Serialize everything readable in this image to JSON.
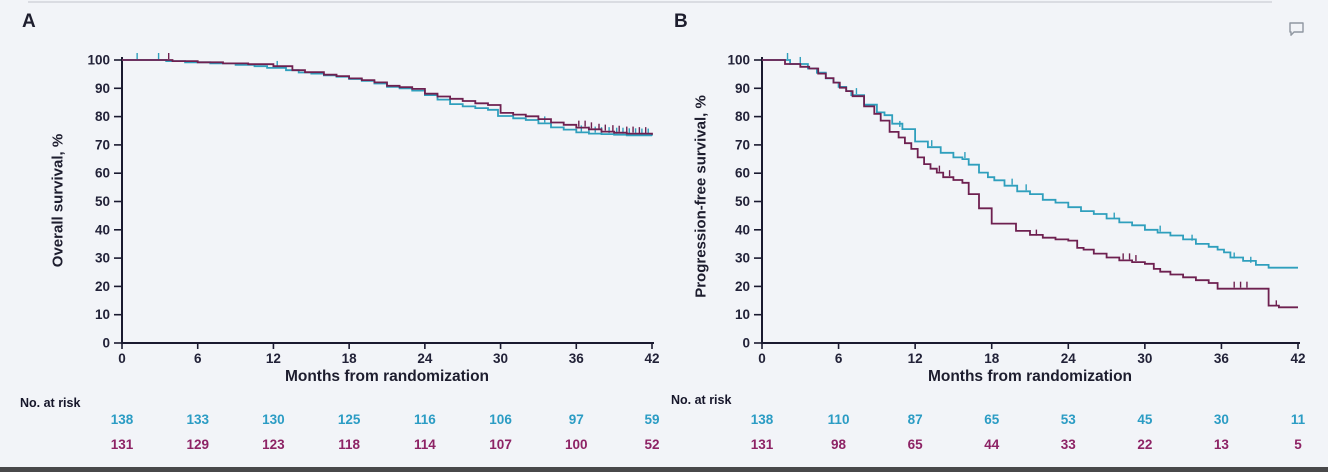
{
  "figure": {
    "background_color": "#f2f4f8",
    "axis_color": "#1a1a30",
    "tick_text_color": "#222238",
    "annotation_icon": "comment-bubble"
  },
  "chart_data": [
    {
      "type": "line",
      "style": "kaplan-meier-step",
      "panel_label": "A",
      "title": "",
      "xlabel": "Months from randomization",
      "ylabel": "Overall survival, %",
      "xlim": [
        0,
        42
      ],
      "ylim": [
        0,
        100
      ],
      "x_ticks": [
        0,
        6,
        12,
        18,
        24,
        30,
        36,
        42
      ],
      "y_ticks": [
        0,
        10,
        20,
        30,
        40,
        50,
        60,
        70,
        80,
        90,
        100
      ],
      "grid": false,
      "legend": "none",
      "series": [
        {
          "name": "teal-arm",
          "color": "#2f9fbd",
          "points": [
            [
              0,
              100
            ],
            [
              3.5,
              99.6
            ],
            [
              5,
              99.2
            ],
            [
              7,
              98.8
            ],
            [
              9,
              98.3
            ],
            [
              10.5,
              97.8
            ],
            [
              11.5,
              97.2
            ],
            [
              13,
              96.4
            ],
            [
              14,
              95.6
            ],
            [
              15,
              95.2
            ],
            [
              16,
              94.6
            ],
            [
              17,
              94.1
            ],
            [
              18,
              93.3
            ],
            [
              19,
              92.6
            ],
            [
              20,
              91.7
            ],
            [
              21,
              90.5
            ],
            [
              22,
              90
            ],
            [
              23,
              89.2
            ],
            [
              24,
              87.6
            ],
            [
              25,
              86
            ],
            [
              26,
              84.4
            ],
            [
              27,
              83.6
            ],
            [
              28,
              83
            ],
            [
              29,
              82.4
            ],
            [
              29.8,
              80.2
            ],
            [
              31,
              79.4
            ],
            [
              32,
              78.8
            ],
            [
              33,
              77.6
            ],
            [
              34,
              76.2
            ],
            [
              35,
              75.4
            ],
            [
              36,
              74.4
            ],
            [
              37,
              74
            ],
            [
              38,
              73.8
            ],
            [
              39,
              73.6
            ],
            [
              40,
              73.4
            ],
            [
              42,
              73.3
            ]
          ],
          "censor_marks": [
            [
              1.2,
              100
            ],
            [
              2.9,
              100
            ],
            [
              12.3,
              97.2
            ],
            [
              33.5,
              77.6
            ],
            [
              36.4,
              74.4
            ],
            [
              37,
              74
            ],
            [
              37.5,
              74
            ],
            [
              38,
              73.8
            ],
            [
              38.6,
              73.8
            ],
            [
              39.2,
              73.6
            ],
            [
              39.7,
              73.6
            ],
            [
              40.2,
              73.4
            ],
            [
              40.7,
              73.4
            ],
            [
              41.2,
              73.3
            ],
            [
              41.7,
              73.3
            ]
          ]
        },
        {
          "name": "maroon-arm",
          "color": "#6e2050",
          "points": [
            [
              0,
              100
            ],
            [
              4,
              99.6
            ],
            [
              6,
              99.2
            ],
            [
              8,
              98.8
            ],
            [
              10,
              98.5
            ],
            [
              12,
              97.8
            ],
            [
              13.5,
              96.4
            ],
            [
              14.5,
              95.7
            ],
            [
              16,
              94.8
            ],
            [
              17,
              94.3
            ],
            [
              18,
              93.5
            ],
            [
              19,
              92.9
            ],
            [
              20,
              92.1
            ],
            [
              21,
              90.9
            ],
            [
              22,
              90.4
            ],
            [
              23,
              89.8
            ],
            [
              24,
              88.1
            ],
            [
              25,
              87.1
            ],
            [
              26,
              86.3
            ],
            [
              27,
              85.5
            ],
            [
              28,
              84.7
            ],
            [
              29,
              84.1
            ],
            [
              30,
              81.3
            ],
            [
              31,
              80.7
            ],
            [
              32,
              80.1
            ],
            [
              33,
              79.1
            ],
            [
              34,
              77.9
            ],
            [
              35,
              77.1
            ],
            [
              36,
              76.1
            ],
            [
              37,
              75.5
            ],
            [
              38,
              74.7
            ],
            [
              39,
              74.3
            ],
            [
              40,
              74
            ],
            [
              42,
              73.6
            ]
          ],
          "censor_marks": [
            [
              3.7,
              100
            ],
            [
              36.2,
              76.1
            ],
            [
              36.7,
              76.1
            ],
            [
              37.2,
              75.5
            ],
            [
              37.8,
              75
            ],
            [
              38.3,
              74.7
            ],
            [
              38.9,
              74.5
            ],
            [
              39.4,
              74.3
            ],
            [
              40,
              74
            ],
            [
              40.5,
              74
            ],
            [
              41,
              73.8
            ],
            [
              41.5,
              73.8
            ]
          ]
        }
      ],
      "at_risk_table": {
        "title": "No. at risk",
        "columns": [
          0,
          6,
          12,
          18,
          24,
          30,
          36,
          42
        ],
        "rows": [
          {
            "name": "teal-arm",
            "color": "#2b9cc4",
            "values": [
              138,
              133,
              130,
              125,
              116,
              106,
              97,
              59
            ]
          },
          {
            "name": "maroon-arm",
            "color": "#8d2365",
            "values": [
              131,
              129,
              123,
              118,
              114,
              107,
              100,
              52
            ]
          }
        ]
      }
    },
    {
      "type": "line",
      "style": "kaplan-meier-step",
      "panel_label": "B",
      "title": "",
      "xlabel": "Months from randomization",
      "ylabel": "Progression-free survival, %",
      "xlim": [
        0,
        42
      ],
      "ylim": [
        0,
        100
      ],
      "x_ticks": [
        0,
        6,
        12,
        18,
        24,
        30,
        36,
        42
      ],
      "y_ticks": [
        0,
        10,
        20,
        30,
        40,
        50,
        60,
        70,
        80,
        90,
        100
      ],
      "grid": false,
      "legend": "none",
      "series": [
        {
          "name": "teal-arm",
          "color": "#2f9fbd",
          "points": [
            [
              0,
              100
            ],
            [
              2.2,
              98.6
            ],
            [
              3.6,
              97
            ],
            [
              4.3,
              95.5
            ],
            [
              5,
              93.5
            ],
            [
              5.6,
              92
            ],
            [
              6,
              90.5
            ],
            [
              6.6,
              89
            ],
            [
              7,
              87.6
            ],
            [
              8,
              84.2
            ],
            [
              9,
              81.5
            ],
            [
              9.6,
              80.5
            ],
            [
              10.2,
              77.5
            ],
            [
              11,
              75.6
            ],
            [
              12,
              71.2
            ],
            [
              13,
              69.2
            ],
            [
              14,
              67.2
            ],
            [
              15,
              65.6
            ],
            [
              15.7,
              65
            ],
            [
              16.2,
              63
            ],
            [
              17,
              60.2
            ],
            [
              17.7,
              58.6
            ],
            [
              18.2,
              57.5
            ],
            [
              19,
              55.6
            ],
            [
              20,
              53.6
            ],
            [
              21,
              52.6
            ],
            [
              22,
              50.6
            ],
            [
              23,
              49.6
            ],
            [
              24,
              48
            ],
            [
              25,
              46.6
            ],
            [
              26,
              45.6
            ],
            [
              27,
              44
            ],
            [
              28,
              42.6
            ],
            [
              29,
              41.6
            ],
            [
              30,
              40
            ],
            [
              31,
              39
            ],
            [
              32,
              38
            ],
            [
              33,
              36.6
            ],
            [
              34,
              35
            ],
            [
              35,
              34
            ],
            [
              35.7,
              33
            ],
            [
              36.2,
              32
            ],
            [
              36.7,
              30.2
            ],
            [
              37.7,
              29
            ],
            [
              38.7,
              27.6
            ],
            [
              39.7,
              26.6
            ],
            [
              42,
              26.6
            ]
          ],
          "censor_marks": [
            [
              2,
              100
            ],
            [
              3,
              98.6
            ],
            [
              7.4,
              87.6
            ],
            [
              10.8,
              76
            ],
            [
              13.3,
              69.2
            ],
            [
              15.9,
              65
            ],
            [
              19.6,
              55.6
            ],
            [
              20.7,
              53.6
            ],
            [
              27.6,
              43.6
            ],
            [
              31.2,
              39
            ],
            [
              33.7,
              35.8
            ],
            [
              37,
              29.5
            ],
            [
              38.3,
              28
            ]
          ]
        },
        {
          "name": "maroon-arm",
          "color": "#6e2050",
          "points": [
            [
              0,
              100
            ],
            [
              1.8,
              98.6
            ],
            [
              3,
              97.6
            ],
            [
              3.7,
              97
            ],
            [
              4.4,
              95.2
            ],
            [
              5,
              93.6
            ],
            [
              5.6,
              92
            ],
            [
              6.1,
              90.2
            ],
            [
              6.6,
              89
            ],
            [
              7.1,
              87.2
            ],
            [
              8,
              83.6
            ],
            [
              8.8,
              81
            ],
            [
              9.3,
              78.6
            ],
            [
              10,
              74.6
            ],
            [
              10.7,
              72.6
            ],
            [
              11.2,
              70.6
            ],
            [
              11.7,
              68.6
            ],
            [
              12.2,
              65.6
            ],
            [
              12.7,
              63.2
            ],
            [
              13.2,
              61.6
            ],
            [
              13.7,
              60.2
            ],
            [
              14.2,
              58.6
            ],
            [
              15,
              57.6
            ],
            [
              15.7,
              56.6
            ],
            [
              16.2,
              52.6
            ],
            [
              17,
              47.6
            ],
            [
              18,
              42.2
            ],
            [
              19.9,
              39.6
            ],
            [
              21,
              38.2
            ],
            [
              22,
              37.2
            ],
            [
              23,
              36.6
            ],
            [
              24,
              36.2
            ],
            [
              24.7,
              33.6
            ],
            [
              25.2,
              33
            ],
            [
              26,
              31.6
            ],
            [
              27,
              30.2
            ],
            [
              28,
              29.2
            ],
            [
              29,
              28.6
            ],
            [
              30,
              28
            ],
            [
              30.7,
              26.2
            ],
            [
              31.2,
              25.2
            ],
            [
              32,
              24.2
            ],
            [
              33,
              23.2
            ],
            [
              34,
              22.2
            ],
            [
              35,
              21.2
            ],
            [
              35.7,
              19.2
            ],
            [
              39.7,
              13.2
            ],
            [
              40.5,
              12.6
            ],
            [
              42,
              12.6
            ]
          ],
          "censor_marks": [
            [
              13.9,
              60.2
            ],
            [
              14.7,
              58.6
            ],
            [
              21.5,
              37.6
            ],
            [
              28.3,
              29.2
            ],
            [
              28.8,
              29.2
            ],
            [
              29.3,
              28.6
            ],
            [
              37,
              19.2
            ],
            [
              37.5,
              19.2
            ],
            [
              38,
              19.2
            ],
            [
              40.3,
              12.6
            ]
          ]
        }
      ],
      "at_risk_table": {
        "title": "No. at risk",
        "columns": [
          0,
          6,
          12,
          18,
          24,
          30,
          36,
          42
        ],
        "rows": [
          {
            "name": "teal-arm",
            "color": "#2b9cc4",
            "values": [
              138,
              110,
              87,
              65,
              53,
              45,
              30,
              11
            ]
          },
          {
            "name": "maroon-arm",
            "color": "#8d2365",
            "values": [
              131,
              98,
              65,
              44,
              33,
              22,
              13,
              5
            ]
          }
        ]
      }
    }
  ]
}
